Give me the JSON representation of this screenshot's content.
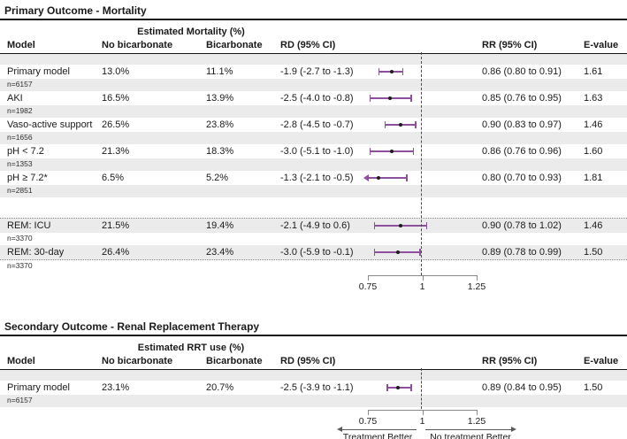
{
  "colors": {
    "purple": "#8F4F9F",
    "row_shade": "#EBEBEB",
    "text": "#1A1A1A"
  },
  "primary": {
    "title": "Primary Outcome - Mortality",
    "span_header": "Estimated Mortality (%)",
    "columns": {
      "model": "Model",
      "no_bicarbonate": "No bicarbonate",
      "bicarbonate": "Bicarbonate",
      "rd": "RD (95% CI)",
      "rr": "RR (95% CI)",
      "evalue": "E-value"
    },
    "rows": [
      {
        "model": "Primary model",
        "n": "n=6157",
        "no_bicarbonate": "13.0%",
        "bicarbonate": "11.1%",
        "rd": "-1.9 (-2.7 to -1.3)",
        "rr_text": "0.86 (0.80 to 0.91)",
        "evalue": "1.61",
        "rr": 0.86,
        "ci_low": 0.8,
        "ci_high": 0.91,
        "clipped_low": false
      },
      {
        "model": "AKI",
        "n": "n=1982",
        "no_bicarbonate": "16.5%",
        "bicarbonate": "13.9%",
        "rd": "-2.5 (-4.0 to -0.8)",
        "rr_text": "0.85 (0.76 to 0.95)",
        "evalue": "1.63",
        "rr": 0.85,
        "ci_low": 0.76,
        "ci_high": 0.95,
        "clipped_low": false
      },
      {
        "model": "Vaso-active support",
        "n": "n=1656",
        "no_bicarbonate": "26.5%",
        "bicarbonate": "23.8%",
        "rd": "-2.8 (-4.5 to -0.7)",
        "rr_text": "0.90 (0.83 to 0.97)",
        "evalue": "1.46",
        "rr": 0.9,
        "ci_low": 0.83,
        "ci_high": 0.97,
        "clipped_low": false
      },
      {
        "model": "pH < 7.2",
        "n": "n=1353",
        "no_bicarbonate": "21.3%",
        "bicarbonate": "18.3%",
        "rd": "-3.0 (-5.1 to -1.0)",
        "rr_text": "0.86 (0.76 to 0.96)",
        "evalue": "1.60",
        "rr": 0.86,
        "ci_low": 0.76,
        "ci_high": 0.96,
        "clipped_low": false
      },
      {
        "model": "pH ≥ 7.2*",
        "n": "n=2851",
        "no_bicarbonate": "6.5%",
        "bicarbonate": "5.2%",
        "rd": "-1.3 (-2.1 to -0.5)",
        "rr_text": "0.80 (0.70 to 0.93)",
        "evalue": "1.81",
        "rr": 0.8,
        "ci_low": 0.7,
        "ci_high": 0.93,
        "clipped_low": true
      }
    ],
    "rem_rows": [
      {
        "model": "REM: ICU",
        "n": "n=3370",
        "no_bicarbonate": "21.5%",
        "bicarbonate": "19.4%",
        "rd": "-2.1 (-4.9 to 0.6)",
        "rr_text": "0.90 (0.78 to 1.02)",
        "evalue": "1.46",
        "rr": 0.9,
        "ci_low": 0.78,
        "ci_high": 1.02,
        "clipped_low": false
      },
      {
        "model": "REM: 30-day",
        "n": "n=3370",
        "no_bicarbonate": "26.4%",
        "bicarbonate": "23.4%",
        "rd": "-3.0 (-5.9 to -0.1)",
        "rr_text": "0.89 (0.78 to 0.99)",
        "evalue": "1.50",
        "rr": 0.89,
        "ci_low": 0.78,
        "ci_high": 0.99,
        "clipped_low": false
      }
    ],
    "axis": {
      "min": 0.75,
      "max": 1.25,
      "reference": 1,
      "ticks": [
        0.75,
        1,
        1.25
      ],
      "tick_labels": [
        "0.75",
        "1",
        "1.25"
      ]
    }
  },
  "secondary": {
    "title": "Secondary Outcome - Renal Replacement Therapy",
    "span_header": "Estimated RRT use (%)",
    "columns": {
      "model": "Model",
      "no_bicarbonate": "No bicarbonate",
      "bicarbonate": "Bicarbonate",
      "rd": "RD (95% CI)",
      "rr": "RR (95% CI)",
      "evalue": "E-value"
    },
    "rows": [
      {
        "model": "Primary model",
        "n": "n=6157",
        "no_bicarbonate": "23.1%",
        "bicarbonate": "20.7%",
        "rd": "-2.5 (-3.9 to -1.1)",
        "rr_text": "0.89 (0.84 to 0.95)",
        "evalue": "1.50",
        "rr": 0.89,
        "ci_low": 0.84,
        "ci_high": 0.95,
        "clipped_low": false
      }
    ],
    "axis": {
      "min": 0.75,
      "max": 1.25,
      "reference": 1,
      "ticks": [
        0.75,
        1,
        1.25
      ],
      "tick_labels": [
        "0.75",
        "1",
        "1.25"
      ]
    },
    "direction_labels": {
      "left": "Treatment Better",
      "right": "No treatment Better"
    }
  },
  "chart_data": [
    {
      "type": "scatter",
      "subtype": "forest-plot",
      "title": "Primary Outcome - Mortality",
      "xlabel": "RR (95% CI)",
      "xlim": [
        0.75,
        1.25
      ],
      "x_ticks": [
        0.75,
        1,
        1.25
      ],
      "reference_line": 1,
      "series": [
        {
          "name": "Primary model",
          "rr": 0.86,
          "ci": [
            0.8,
            0.91
          ],
          "rd": -1.9,
          "rd_ci": [
            -2.7,
            -1.3
          ],
          "evalue": 1.61
        },
        {
          "name": "AKI",
          "rr": 0.85,
          "ci": [
            0.76,
            0.95
          ],
          "rd": -2.5,
          "rd_ci": [
            -4.0,
            -0.8
          ],
          "evalue": 1.63
        },
        {
          "name": "Vaso-active support",
          "rr": 0.9,
          "ci": [
            0.83,
            0.97
          ],
          "rd": -2.8,
          "rd_ci": [
            -4.5,
            -0.7
          ],
          "evalue": 1.46
        },
        {
          "name": "pH < 7.2",
          "rr": 0.86,
          "ci": [
            0.76,
            0.96
          ],
          "rd": -3.0,
          "rd_ci": [
            -5.1,
            -1.0
          ],
          "evalue": 1.6
        },
        {
          "name": "pH ≥ 7.2*",
          "rr": 0.8,
          "ci": [
            0.7,
            0.93
          ],
          "rd": -1.3,
          "rd_ci": [
            -2.1,
            -0.5
          ],
          "evalue": 1.81
        },
        {
          "name": "REM: ICU",
          "rr": 0.9,
          "ci": [
            0.78,
            1.02
          ],
          "rd": -2.1,
          "rd_ci": [
            -4.9,
            0.6
          ],
          "evalue": 1.46
        },
        {
          "name": "REM: 30-day",
          "rr": 0.89,
          "ci": [
            0.78,
            0.99
          ],
          "rd": -3.0,
          "rd_ci": [
            -5.9,
            -0.1
          ],
          "evalue": 1.5
        }
      ]
    },
    {
      "type": "scatter",
      "subtype": "forest-plot",
      "title": "Secondary Outcome - Renal Replacement Therapy",
      "xlabel": "RR (95% CI)",
      "xlim": [
        0.75,
        1.25
      ],
      "x_ticks": [
        0.75,
        1,
        1.25
      ],
      "reference_line": 1,
      "annotations": [
        "Treatment Better",
        "No treatment Better"
      ],
      "series": [
        {
          "name": "Primary model",
          "rr": 0.89,
          "ci": [
            0.84,
            0.95
          ],
          "rd": -2.5,
          "rd_ci": [
            -3.9,
            -1.1
          ],
          "evalue": 1.5
        }
      ]
    }
  ]
}
